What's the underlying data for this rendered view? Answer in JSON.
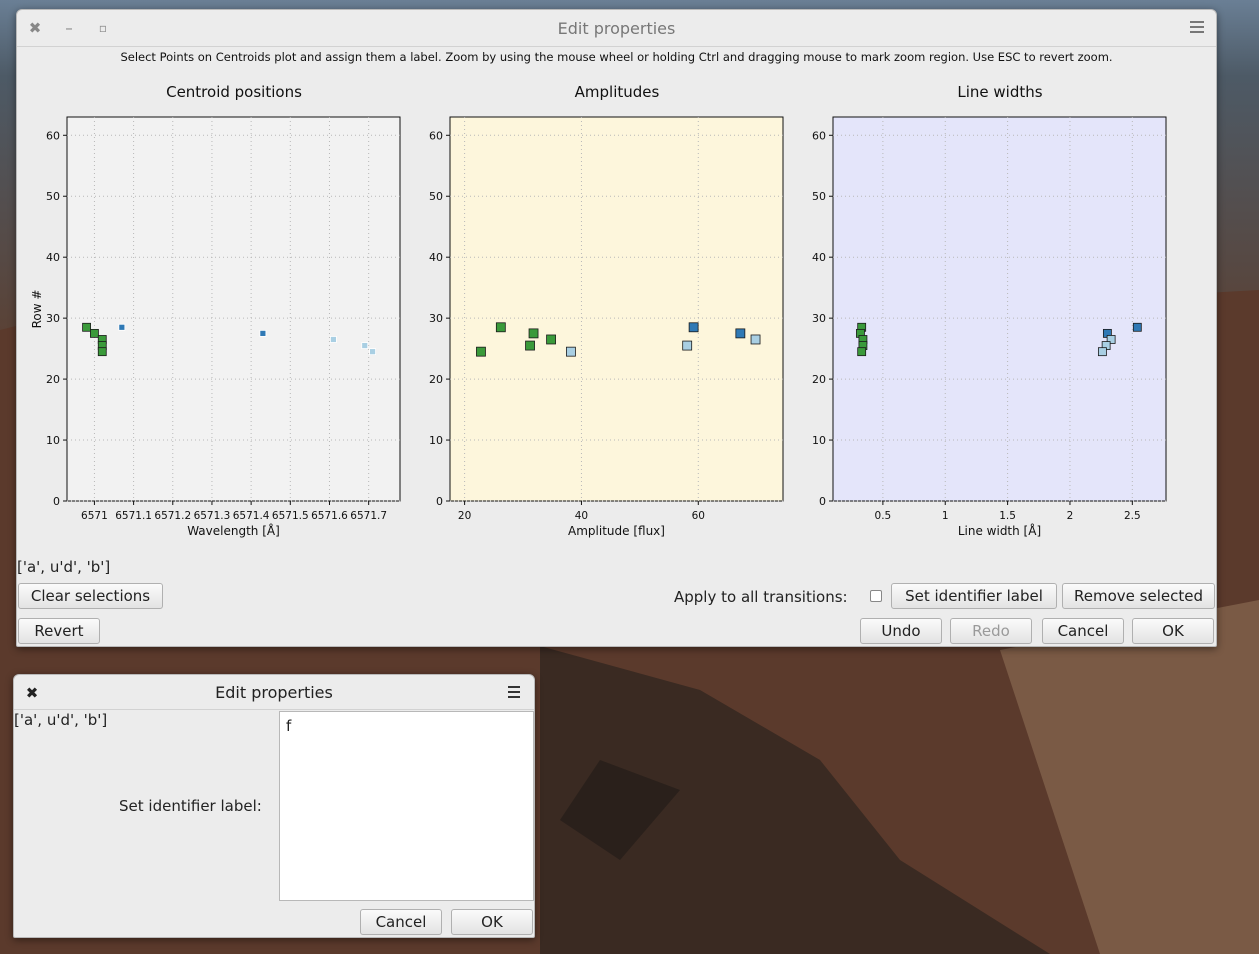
{
  "main_window": {
    "title": "Edit properties",
    "instruction": "Select Points on Centroids plot and assign them a label. Zoom by using the mouse wheel or holding Ctrl and dragging mouse to mark zoom region. Use ESC to revert zoom.",
    "selection_text": "['a', u'd', 'b']",
    "apply_all_label": "Apply to all transitions:",
    "apply_all_checked": false,
    "buttons": {
      "clear_selections": "Clear selections",
      "set_identifier": "Set identifier label",
      "remove_selected": "Remove selected",
      "revert": "Revert",
      "undo": "Undo",
      "redo": "Redo",
      "cancel": "Cancel",
      "ok": "OK"
    }
  },
  "dialog": {
    "title": "Edit properties",
    "selection_text": "['a', u'd', 'b']",
    "field_label": "Set identifier label:",
    "field_value": "f",
    "buttons": {
      "cancel": "Cancel",
      "ok": "OK"
    }
  },
  "colors": {
    "green": "#3a9a3a",
    "blue": "#2f79b5",
    "lightblue": "#a9cfe3",
    "plot1_bg": "#f2f2f2",
    "plot2_bg": "#fdf6dc",
    "plot3_bg": "#e4e5fa"
  },
  "chart_data": [
    {
      "type": "scatter",
      "title": "Centroid positions",
      "xlabel": "Wavelength [Å]",
      "ylabel": "Row #",
      "xlim": [
        6570.93,
        6571.78
      ],
      "ylim": [
        0,
        63
      ],
      "xticks": [
        6571.0,
        6571.1,
        6571.2,
        6571.3,
        6571.4,
        6571.5,
        6571.6,
        6571.7
      ],
      "xtick_labels": [
        "6571",
        "6571.1",
        "6571.2",
        "6571.3",
        "6571.4",
        "6571.5",
        "6571.6",
        "6571.7"
      ],
      "yticks": [
        0,
        10,
        20,
        30,
        40,
        50,
        60
      ],
      "grid": true,
      "series": [
        {
          "color": "green",
          "marker": "s",
          "size": 8,
          "points": [
            [
              6570.98,
              28.5
            ],
            [
              6571.0,
              27.5
            ],
            [
              6571.02,
              26.5
            ],
            [
              6571.02,
              25.5
            ],
            [
              6571.02,
              24.5
            ]
          ]
        },
        {
          "color": "blue",
          "marker": "s",
          "size": 6,
          "points": [
            [
              6571.07,
              28.5
            ],
            [
              6571.43,
              27.5
            ]
          ]
        },
        {
          "color": "lightblue",
          "marker": "s",
          "size": 6,
          "points": [
            [
              6571.61,
              26.5
            ],
            [
              6571.69,
              25.5
            ],
            [
              6571.71,
              24.5
            ]
          ]
        }
      ]
    },
    {
      "type": "scatter",
      "title": "Amplitudes",
      "xlabel": "Amplitude [flux]",
      "ylabel": "",
      "xlim": [
        17.5,
        74.5
      ],
      "ylim": [
        0,
        63
      ],
      "xticks": [
        20,
        40,
        60
      ],
      "xtick_labels": [
        "20",
        "40",
        "60"
      ],
      "yticks": [
        0,
        10,
        20,
        30,
        40,
        50,
        60
      ],
      "grid": true,
      "series": [
        {
          "color": "green",
          "marker": "s",
          "size": 9,
          "points": [
            [
              22.8,
              24.5
            ],
            [
              26.2,
              28.5
            ],
            [
              31.2,
              25.5
            ],
            [
              31.8,
              27.5
            ],
            [
              34.8,
              26.5
            ]
          ]
        },
        {
          "color": "blue",
          "marker": "s",
          "size": 9,
          "points": [
            [
              59.2,
              28.5
            ],
            [
              67.2,
              27.5
            ]
          ]
        },
        {
          "color": "lightblue",
          "marker": "s",
          "size": 9,
          "points": [
            [
              38.2,
              24.5
            ],
            [
              58.1,
              25.5
            ],
            [
              69.8,
              26.5
            ]
          ]
        }
      ]
    },
    {
      "type": "scatter",
      "title": "Line widths",
      "xlabel": "Line width [Å]",
      "ylabel": "",
      "xlim": [
        0.1,
        2.77
      ],
      "ylim": [
        0,
        63
      ],
      "xticks": [
        0.5,
        1.0,
        1.5,
        2.0,
        2.5
      ],
      "xtick_labels": [
        "0.5",
        "1",
        "1.5",
        "2",
        "2.5"
      ],
      "yticks": [
        0,
        10,
        20,
        30,
        40,
        50,
        60
      ],
      "grid": true,
      "series": [
        {
          "color": "green",
          "marker": "s",
          "size": 8,
          "points": [
            [
              0.33,
              28.5
            ],
            [
              0.32,
              27.5
            ],
            [
              0.34,
              26.5
            ],
            [
              0.34,
              25.5
            ],
            [
              0.33,
              24.5
            ]
          ]
        },
        {
          "color": "blue",
          "marker": "s",
          "size": 8,
          "points": [
            [
              2.3,
              27.5
            ],
            [
              2.54,
              28.5
            ]
          ]
        },
        {
          "color": "lightblue",
          "marker": "s",
          "size": 8,
          "points": [
            [
              2.33,
              26.5
            ],
            [
              2.29,
              25.5
            ],
            [
              2.26,
              24.5
            ]
          ]
        }
      ]
    }
  ]
}
